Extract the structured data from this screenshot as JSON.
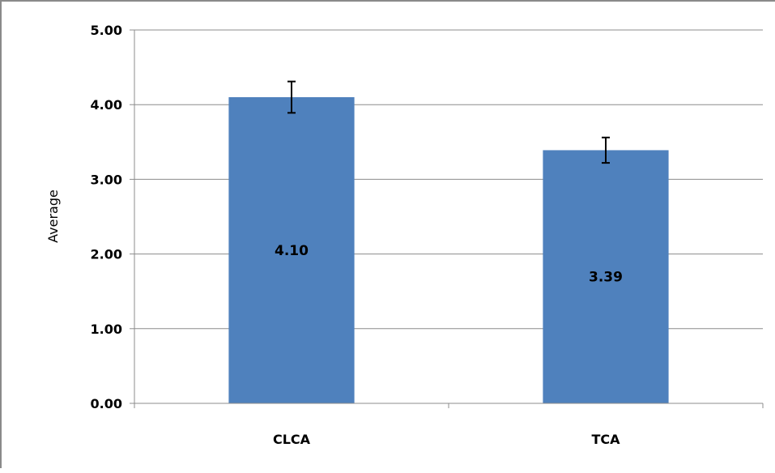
{
  "chart_data": {
    "type": "bar",
    "title": "",
    "xlabel": "",
    "ylabel": "Average",
    "categories": [
      "CLCA",
      "TCA"
    ],
    "values": [
      4.1,
      3.39
    ],
    "value_labels": [
      "4.10",
      "3.39"
    ],
    "error_bars": {
      "low": [
        3.89,
        3.22
      ],
      "high": [
        4.31,
        3.56
      ]
    },
    "ylim": [
      0,
      5
    ],
    "yticks": [
      "0.00",
      "1.00",
      "2.00",
      "3.00",
      "4.00",
      "5.00"
    ],
    "grid": true,
    "legend": "none",
    "bar_color": "#4f81bd",
    "grid_color": "#8c8c8c"
  }
}
